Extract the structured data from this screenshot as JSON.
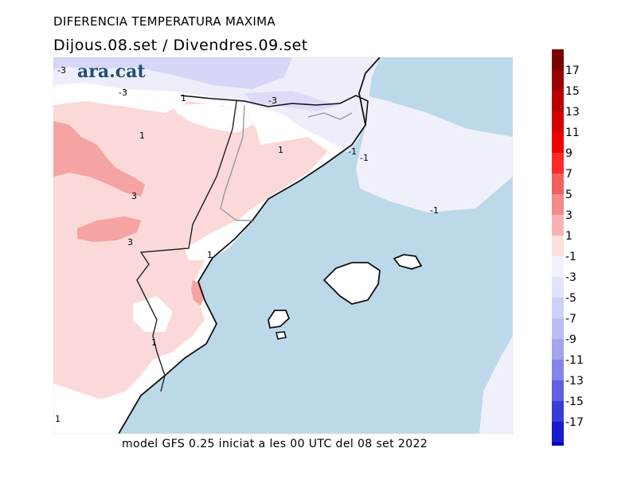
{
  "header": {
    "title": "DIFERENCIA TEMPERATURA MAXIMA",
    "subtitle": "Dijous.08.set  /  Divendres.09.set"
  },
  "footer": {
    "text": "model GFS 0.25 iniciat a les 00 UTC del 08 set 2022"
  },
  "logo": {
    "text": "ara.cat",
    "color": "#1f4e79"
  },
  "map": {
    "sea_color": "#bcd9ea",
    "contour_labels": [
      "-3",
      "-3",
      "1",
      "-3",
      "1",
      "1",
      "-1",
      "-1",
      "-1",
      "3",
      "3",
      "1",
      "1",
      "1"
    ]
  },
  "legend": {
    "labels": [
      "17",
      "15",
      "13",
      "11",
      "9",
      "7",
      "5",
      "3",
      "1",
      "-1",
      "-3",
      "-5",
      "-7",
      "-9",
      "-11",
      "-13",
      "-15",
      "-17"
    ],
    "warm_colors": [
      "#7a0000",
      "#9b0000",
      "#b80000",
      "#d40000",
      "#ee0000",
      "#ff2a2a",
      "#f06060",
      "#f58a8a",
      "#f8b4b4",
      "#fde0e0"
    ],
    "cool_colors": [
      "#f2f2ff",
      "#e2e2fb",
      "#cfcff7",
      "#bcbcf3",
      "#a3a3ee",
      "#8585e8",
      "#6060e0",
      "#3a3ad8",
      "#1a1ad0",
      "#0000c0"
    ]
  }
}
